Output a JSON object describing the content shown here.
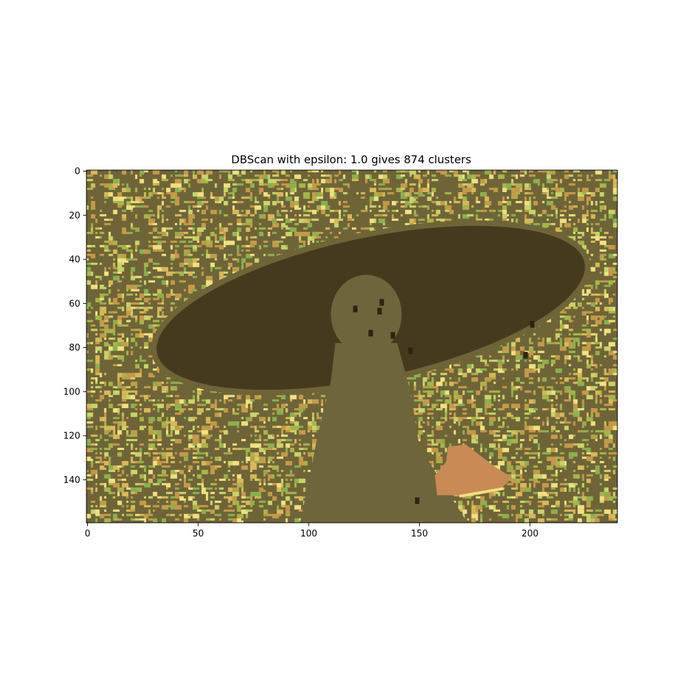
{
  "chart_data": {
    "type": "heatmap",
    "title": "DBScan with epsilon: 1.0 gives 874 clusters",
    "xlabel": "",
    "ylabel": "",
    "x_ticks": [
      0,
      50,
      100,
      150,
      200
    ],
    "y_ticks": [
      0,
      20,
      40,
      60,
      80,
      100,
      120,
      140
    ],
    "xlim": [
      -0.5,
      239.5
    ],
    "ylim": [
      159.5,
      -0.5
    ],
    "image_size": {
      "cols": 240,
      "rows": 160
    },
    "y_axis_inverted": true,
    "grid": false,
    "legend": "none",
    "colors": {
      "background_olive": "#6e6438",
      "dark_region": "#463a1e",
      "figure_body": "#6f653d",
      "light_green": "#c8d46a",
      "yellow_green": "#a8b44c",
      "tan": "#c49a4a",
      "mustard": "#d8b85a",
      "orange_patch": "#c98a55",
      "dark_spot": "#2e2410",
      "pale_yellow": "#f0e080",
      "green": "#8cb050"
    }
  }
}
